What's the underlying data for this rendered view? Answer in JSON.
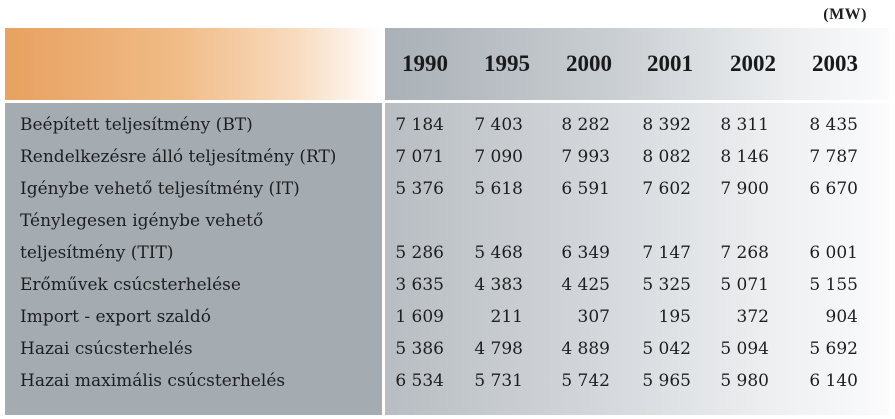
{
  "unit": "(MW)",
  "years": [
    "1990",
    "1995",
    "2000",
    "2001",
    "2002",
    "2003"
  ],
  "rows": [
    {
      "label": [
        "Beépített teljesítmény (BT)"
      ],
      "values": [
        "7 184",
        "7 403",
        "8 282",
        "8 392",
        "8 311",
        "8 435"
      ]
    },
    {
      "label": [
        "Rendelkezésre álló teljesítmény (RT)"
      ],
      "values": [
        "7 071",
        "7 090",
        "7 993",
        "8 082",
        "8 146",
        "7 787"
      ]
    },
    {
      "label": [
        "Igénybe vehető teljesítmény (IT)"
      ],
      "values": [
        "5 376",
        "5 618",
        "6 591",
        "7 602",
        "7 900",
        "6 670"
      ]
    },
    {
      "label": [
        "Ténylegesen igénybe vehető",
        "teljesítmény (TIT)"
      ],
      "values": [
        "5 286",
        "5 468",
        "6 349",
        "7 147",
        "7 268",
        "6 001"
      ]
    },
    {
      "label": [
        "Erőművek csúcsterhelése"
      ],
      "values": [
        "3 635",
        "4 383",
        "4 425",
        "5 325",
        "5 071",
        "5 155"
      ]
    },
    {
      "label": [
        "Import - export szaldó"
      ],
      "values": [
        "1 609",
        "211",
        "307",
        "195",
        "372",
        "904"
      ]
    },
    {
      "label": [
        "Hazai csúcsterhelés"
      ],
      "values": [
        "5 386",
        "4 798",
        "4 889",
        "5 042",
        "5 094",
        "5 692"
      ]
    },
    {
      "label": [
        "Hazai maximális csúcsterhelés"
      ],
      "values": [
        "6 534",
        "5 731",
        "5 742",
        "5 965",
        "5 980",
        "6 140"
      ]
    }
  ]
}
